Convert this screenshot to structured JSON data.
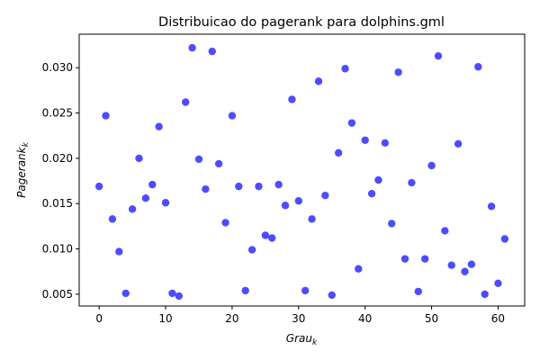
{
  "chart_data": {
    "type": "scatter",
    "title": "Distribuicao do pagerank para dolphins.gml",
    "xlabel": {
      "base": "Grau",
      "sub": "k"
    },
    "ylabel": {
      "base": "Pagerank",
      "sub": "k"
    },
    "xlim": [
      -3,
      64
    ],
    "ylim": [
      0.0037,
      0.0337
    ],
    "xticks": [
      0,
      10,
      20,
      30,
      40,
      50,
      60
    ],
    "yticks": [
      0.005,
      0.01,
      0.015,
      0.02,
      0.025,
      0.03
    ],
    "ytick_labels": [
      "0.005",
      "0.010",
      "0.015",
      "0.020",
      "0.025",
      "0.030"
    ],
    "grid": false,
    "marker_color": "#0000ff",
    "marker_opacity": 0.7,
    "x": [
      0,
      1,
      2,
      3,
      4,
      5,
      6,
      7,
      8,
      9,
      10,
      11,
      12,
      13,
      14,
      15,
      16,
      17,
      18,
      19,
      20,
      21,
      22,
      23,
      24,
      25,
      26,
      27,
      28,
      29,
      30,
      31,
      32,
      33,
      34,
      35,
      36,
      37,
      38,
      39,
      40,
      41,
      42,
      43,
      44,
      45,
      46,
      47,
      48,
      49,
      50,
      51,
      52,
      53,
      54,
      55,
      56,
      57,
      58,
      59,
      60,
      61
    ],
    "y": [
      0.0169,
      0.0247,
      0.0133,
      0.0097,
      0.0051,
      0.0144,
      0.02,
      0.0156,
      0.0171,
      0.0235,
      0.0151,
      0.0051,
      0.0048,
      0.0262,
      0.0322,
      0.0199,
      0.0166,
      0.0318,
      0.0194,
      0.0129,
      0.0247,
      0.0169,
      0.0054,
      0.0099,
      0.0169,
      0.0115,
      0.0112,
      0.0171,
      0.0148,
      0.0265,
      0.0153,
      0.0054,
      0.0133,
      0.0285,
      0.0159,
      0.0049,
      0.0206,
      0.0299,
      0.0239,
      0.0078,
      0.022,
      0.0161,
      0.0176,
      0.0217,
      0.0128,
      0.0295,
      0.0089,
      0.0173,
      0.0053,
      0.0089,
      0.0192,
      0.0313,
      0.012,
      0.0082,
      0.0216,
      0.0075,
      0.0083,
      0.0301,
      0.005,
      0.0147,
      0.0062,
      0.0111
    ]
  }
}
